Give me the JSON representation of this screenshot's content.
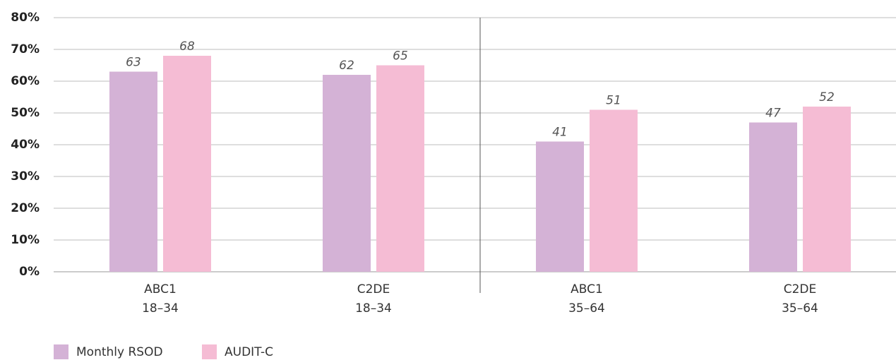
{
  "chart_data": {
    "type": "bar",
    "categories": [
      [
        "ABC1",
        "18–34"
      ],
      [
        "C2DE",
        "18–34"
      ],
      [
        "ABC1",
        "35–64"
      ],
      [
        "C2DE",
        "35–64"
      ]
    ],
    "series": [
      {
        "name": "Monthly RSOD",
        "color": "#d4b2d6",
        "values": [
          63,
          62,
          41,
          47
        ]
      },
      {
        "name": "AUDIT-C",
        "color": "#f5bcd4",
        "values": [
          68,
          65,
          51,
          52
        ]
      }
    ],
    "ylim": [
      0,
      80
    ],
    "yticks": [
      {
        "value": 0,
        "label": "0%"
      },
      {
        "value": 10,
        "label": "10%"
      },
      {
        "value": 20,
        "label": "20%"
      },
      {
        "value": 30,
        "label": "30%"
      },
      {
        "value": 40,
        "label": "40%"
      },
      {
        "value": 50,
        "label": "50%"
      },
      {
        "value": 60,
        "label": "60%"
      },
      {
        "value": 70,
        "label": "70%"
      },
      {
        "value": 80,
        "label": "80%"
      }
    ],
    "grid": true
  }
}
